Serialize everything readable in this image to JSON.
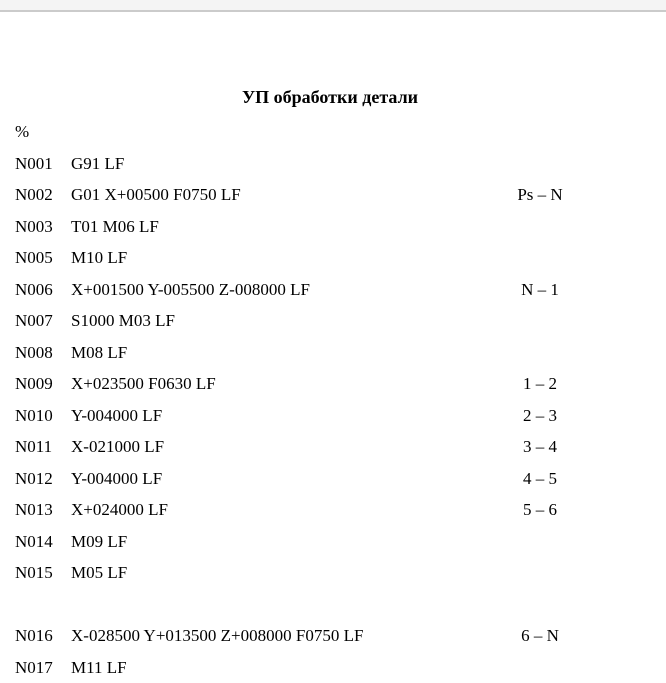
{
  "window": {
    "topbar_color": "#f4f4f4",
    "topbar_border_color": "#cbcbcb",
    "text_color": "#000000"
  },
  "document": {
    "title": "УП обработки детали",
    "start_symbol": "%",
    "lines": [
      {
        "num": "N001",
        "code": "G91 LF",
        "comment": ""
      },
      {
        "num": "N002",
        "code": "G01 X+00500 F0750 LF",
        "comment": "Ps – N"
      },
      {
        "num": "N003",
        "code": "T01 M06 LF",
        "comment": ""
      },
      {
        "num": "N005",
        "code": "M10 LF",
        "comment": ""
      },
      {
        "num": "N006",
        "code": "X+001500 Y-005500 Z-008000 LF",
        "comment": "N – 1"
      },
      {
        "num": "N007",
        "code": "S1000 M03 LF",
        "comment": ""
      },
      {
        "num": "N008",
        "code": "M08 LF",
        "comment": ""
      },
      {
        "num": "N009",
        "code": "X+023500 F0630 LF",
        "comment": "1 – 2"
      },
      {
        "num": "N010",
        "code": "Y-004000 LF",
        "comment": "2 – 3"
      },
      {
        "num": "N011",
        "code": "X-021000 LF",
        "comment": "3 – 4"
      },
      {
        "num": "N012",
        "code": "Y-004000 LF",
        "comment": "4 – 5"
      },
      {
        "num": "N013",
        "code": "X+024000 LF",
        "comment": "5 – 6"
      },
      {
        "num": "N014",
        "code": "M09 LF",
        "comment": ""
      },
      {
        "num": "N015",
        "code": "M05 LF",
        "comment": ""
      },
      {
        "num": "N016",
        "code": "X-028500 Y+013500 Z+008000 F0750 LF",
        "comment": "6 – N"
      },
      {
        "num": "N017",
        "code": "M11 LF",
        "comment": ""
      }
    ]
  }
}
